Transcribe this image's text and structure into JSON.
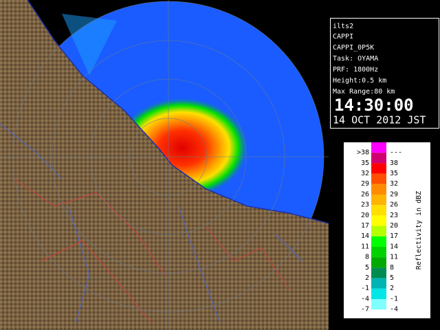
{
  "header": {
    "site": "ilts2",
    "product": "CAPPI",
    "product_name": "CAPPI_0P5K",
    "task": "Task: OYAMA",
    "prf": "PRF: 1800Hz",
    "height": "Height:0.5 km",
    "max_range": "Max Range:80 km",
    "time": "14:30:00",
    "date": "14 OCT 2012 JST"
  },
  "legend": {
    "title": "Reflectivity in dBZ",
    "rows": [
      {
        "low": ">38",
        "high": "---",
        "color": "#ff00ff"
      },
      {
        "low": "35",
        "high": "38",
        "color": "#d00070"
      },
      {
        "low": "32",
        "high": "35",
        "color": "#ff0000"
      },
      {
        "low": "29",
        "high": "32",
        "color": "#ff5000"
      },
      {
        "low": "26",
        "high": "29",
        "color": "#ff8c00"
      },
      {
        "low": "23",
        "high": "26",
        "color": "#ffb400"
      },
      {
        "low": "20",
        "high": "23",
        "color": "#ffe000"
      },
      {
        "low": "17",
        "high": "20",
        "color": "#ffff00"
      },
      {
        "low": "14",
        "high": "17",
        "color": "#b4ff00"
      },
      {
        "low": "11",
        "high": "14",
        "color": "#00ff00"
      },
      {
        "low": "8",
        "high": "11",
        "color": "#00d200"
      },
      {
        "low": "5",
        "high": "8",
        "color": "#00aa00"
      },
      {
        "low": "2",
        "high": "5",
        "color": "#008c50"
      },
      {
        "low": "-1",
        "high": "2",
        "color": "#00b4b4"
      },
      {
        "low": "-4",
        "high": "-1",
        "color": "#00e6e6"
      },
      {
        "low": "-7",
        "high": "-4",
        "color": "#80ffff"
      }
    ]
  }
}
